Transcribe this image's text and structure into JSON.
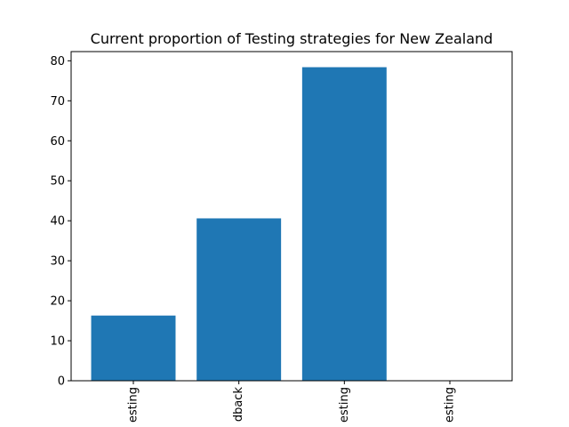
{
  "chart_data": {
    "type": "bar",
    "title": "Current proportion of Testing strategies for New Zealand",
    "xlabel": "",
    "ylabel": "",
    "categories": [
      "esting",
      "dback",
      "esting",
      "esting"
    ],
    "values": [
      16.3,
      40.6,
      78.4,
      0
    ],
    "ylim": [
      0,
      82.3
    ],
    "yticks": [
      0,
      10,
      20,
      30,
      40,
      50,
      60,
      70,
      80
    ],
    "x_tick_rotation": 90,
    "grid": false,
    "legend": "none",
    "bar_color": "#1f77b4"
  }
}
